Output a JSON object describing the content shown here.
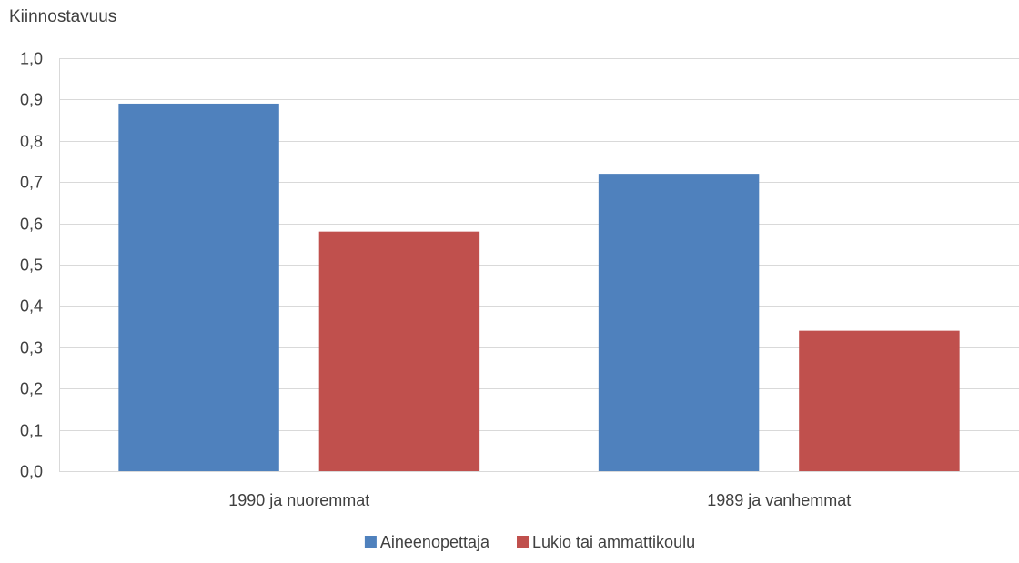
{
  "chart_data": {
    "type": "bar",
    "ylabel": "Kiinnostavuus",
    "xlabel": "",
    "categories": [
      "1990 ja nuoremmat",
      "1989 ja vanhemmat"
    ],
    "series": [
      {
        "name": "Aineenopettaja",
        "values": [
          0.89,
          0.72
        ],
        "color": "#4F81BD"
      },
      {
        "name": "Lukio tai ammattikoulu",
        "values": [
          0.58,
          0.34
        ],
        "color": "#C0504D"
      }
    ],
    "ylim": [
      0,
      1.0
    ],
    "yticks": [
      "0,0",
      "0,1",
      "0,2",
      "0,3",
      "0,4",
      "0,5",
      "0,6",
      "0,7",
      "0,8",
      "0,9",
      "1,0"
    ],
    "grid": true,
    "legend": "bottom-center"
  }
}
